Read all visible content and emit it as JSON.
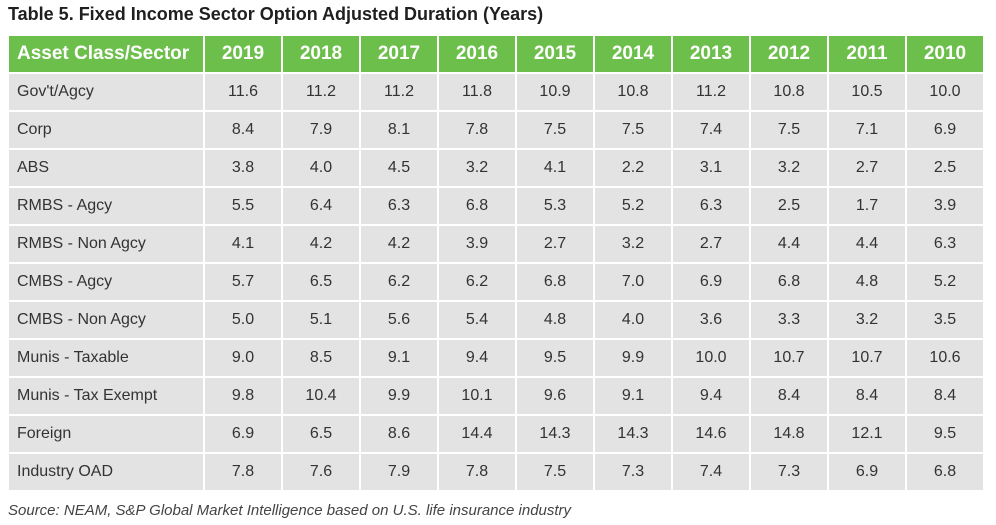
{
  "chart_data": {
    "type": "table",
    "title": "Table 5. Fixed Income Sector Option Adjusted Duration (Years)",
    "row_header": "Asset Class/Sector",
    "columns": [
      "2019",
      "2018",
      "2017",
      "2016",
      "2015",
      "2014",
      "2013",
      "2012",
      "2011",
      "2010"
    ],
    "rows": [
      {
        "label": "Gov't/Agcy",
        "values": [
          "11.6",
          "11.2",
          "11.2",
          "11.8",
          "10.9",
          "10.8",
          "11.2",
          "10.8",
          "10.5",
          "10.0"
        ]
      },
      {
        "label": "Corp",
        "values": [
          "8.4",
          "7.9",
          "8.1",
          "7.8",
          "7.5",
          "7.5",
          "7.4",
          "7.5",
          "7.1",
          "6.9"
        ]
      },
      {
        "label": "ABS",
        "values": [
          "3.8",
          "4.0",
          "4.5",
          "3.2",
          "4.1",
          "2.2",
          "3.1",
          "3.2",
          "2.7",
          "2.5"
        ]
      },
      {
        "label": "RMBS - Agcy",
        "values": [
          "5.5",
          "6.4",
          "6.3",
          "6.8",
          "5.3",
          "5.2",
          "6.3",
          "2.5",
          "1.7",
          "3.9"
        ]
      },
      {
        "label": "RMBS - Non Agcy",
        "values": [
          "4.1",
          "4.2",
          "4.2",
          "3.9",
          "2.7",
          "3.2",
          "2.7",
          "4.4",
          "4.4",
          "6.3"
        ]
      },
      {
        "label": "CMBS - Agcy",
        "values": [
          "5.7",
          "6.5",
          "6.2",
          "6.2",
          "6.8",
          "7.0",
          "6.9",
          "6.8",
          "4.8",
          "5.2"
        ]
      },
      {
        "label": "CMBS - Non Agcy",
        "values": [
          "5.0",
          "5.1",
          "5.6",
          "5.4",
          "4.8",
          "4.0",
          "3.6",
          "3.3",
          "3.2",
          "3.5"
        ]
      },
      {
        "label": "Munis - Taxable",
        "values": [
          "9.0",
          "8.5",
          "9.1",
          "9.4",
          "9.5",
          "9.9",
          "10.0",
          "10.7",
          "10.7",
          "10.6"
        ]
      },
      {
        "label": "Munis - Tax Exempt",
        "values": [
          "9.8",
          "10.4",
          "9.9",
          "10.1",
          "9.6",
          "9.1",
          "9.4",
          "8.4",
          "8.4",
          "8.4"
        ]
      },
      {
        "label": "Foreign",
        "values": [
          "6.9",
          "6.5",
          "8.6",
          "14.4",
          "14.3",
          "14.3",
          "14.6",
          "14.8",
          "12.1",
          "9.5"
        ]
      },
      {
        "label": "Industry OAD",
        "values": [
          "7.8",
          "7.6",
          "7.9",
          "7.8",
          "7.5",
          "7.3",
          "7.4",
          "7.3",
          "6.9",
          "6.8"
        ]
      }
    ],
    "source": "Source: NEAM, S&P Global Market Intelligence based on U.S. life insurance industry"
  }
}
